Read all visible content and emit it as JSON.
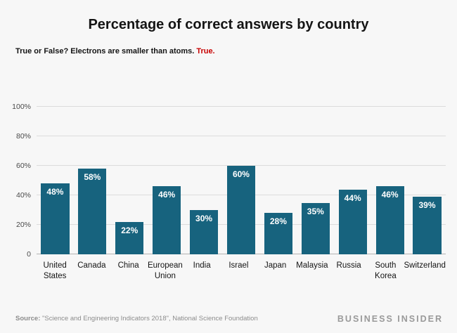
{
  "title": "Percentage of correct answers by country",
  "subtitle": {
    "question": "True or False? Electrons are smaller than atoms.",
    "answer": "True.",
    "answer_color": "#c70000"
  },
  "chart_data": {
    "type": "bar",
    "categories": [
      "United States",
      "Canada",
      "China",
      "European Union",
      "India",
      "Israel",
      "Japan",
      "Malaysia",
      "Russia",
      "South Korea",
      "Switzerland"
    ],
    "values": [
      48,
      58,
      22,
      46,
      30,
      60,
      28,
      35,
      44,
      46,
      39
    ],
    "value_labels": [
      "48%",
      "58%",
      "22%",
      "46%",
      "30%",
      "60%",
      "28%",
      "35%",
      "44%",
      "46%",
      "39%"
    ],
    "title": "Percentage of correct answers by country",
    "xlabel": "",
    "ylabel": "",
    "ylim": [
      0,
      100
    ],
    "yticks": [
      0,
      20,
      40,
      60,
      80,
      100
    ],
    "ytick_labels": [
      "0",
      "20%",
      "40%",
      "60%",
      "80%",
      "100%"
    ],
    "grid": true,
    "legend": "none",
    "bar_color": "#17637e",
    "bar_label_color": "#ffffff"
  },
  "footer": {
    "source_label": "Source:",
    "source_text": " \"Science and Engineering Indicators 2018\", National Science Foundation",
    "brand": "BUSINESS INSIDER"
  }
}
